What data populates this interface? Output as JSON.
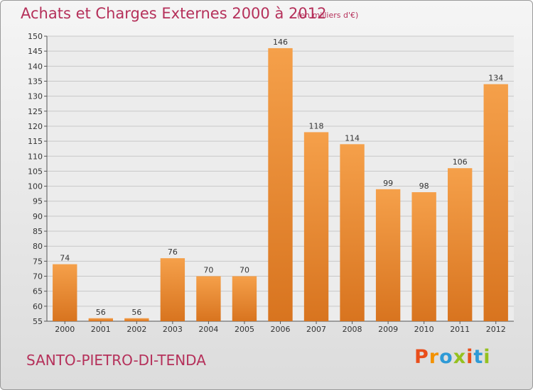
{
  "header": {
    "title": "Achats et Charges Externes 2000 à 2012",
    "subtitle": "(en milliers d'€)"
  },
  "footer": {
    "place": "SANTO-PIETRO-DI-TENDA",
    "brand": "Proxiti",
    "brand_colors": [
      "#e94e1b",
      "#f39200",
      "#2e9ad6",
      "#95c11f",
      "#e94e1b",
      "#2e9ad6",
      "#95c11f"
    ]
  },
  "chart_data": {
    "type": "bar",
    "categories": [
      "2000",
      "2001",
      "2002",
      "2003",
      "2004",
      "2005",
      "2006",
      "2007",
      "2008",
      "2009",
      "2010",
      "2011",
      "2012"
    ],
    "values": [
      74,
      56,
      56,
      76,
      70,
      70,
      146,
      118,
      114,
      99,
      98,
      106,
      134
    ],
    "title": "Achats et Charges Externes 2000 à 2012",
    "xlabel": "",
    "ylabel": "",
    "ylim": [
      55,
      150
    ],
    "yticks": [
      55,
      60,
      65,
      70,
      75,
      80,
      85,
      90,
      95,
      100,
      105,
      110,
      115,
      120,
      125,
      130,
      135,
      140,
      145,
      150
    ],
    "grid": true,
    "bar_color": "#f5a04a",
    "bar_color_dark": "#d8741f"
  }
}
